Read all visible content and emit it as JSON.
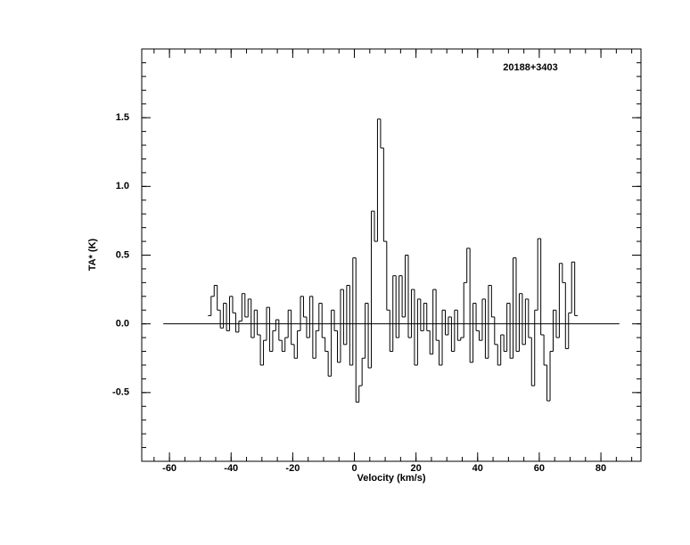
{
  "chart_data": {
    "type": "step",
    "annotation": "20188+3403",
    "x_label": "Velocity (km/s)",
    "y_label": "TA* (K)",
    "xlim": [
      -69,
      93
    ],
    "ylim": [
      -1,
      2
    ],
    "xticks": [
      -60,
      -40,
      -20,
      0,
      20,
      40,
      60,
      80
    ],
    "yticks": [
      -0.5,
      {
        "value": 0,
        "label": "0.0"
      },
      0.5,
      {
        "value": 1,
        "label": "1.0"
      },
      1.5
    ],
    "baseline": {
      "x": [
        -62,
        86
      ],
      "y": 0
    },
    "color": "#000000",
    "x": [
      -47,
      -46,
      -45,
      -44,
      -43,
      -42,
      -41,
      -40,
      -39,
      -38,
      -37,
      -36,
      -35,
      -34,
      -33,
      -32,
      -31,
      -30,
      -29,
      -28,
      -27,
      -26,
      -25,
      -24,
      -23,
      -22,
      -21,
      -20,
      -19,
      -18,
      -17,
      -16,
      -15,
      -14,
      -13,
      -12,
      -11,
      -10,
      -9,
      -8,
      -7,
      -6,
      -5,
      -4,
      -3,
      -2,
      -1,
      0,
      1,
      2,
      3,
      4,
      5,
      6,
      7,
      8,
      9,
      10,
      11,
      12,
      13,
      14,
      15,
      16,
      17,
      18,
      19,
      20,
      21,
      22,
      23,
      24,
      25,
      26,
      27,
      28,
      29,
      30,
      31,
      32,
      33,
      34,
      35,
      36,
      37,
      38,
      39,
      40,
      41,
      42,
      43,
      44,
      45,
      46,
      47,
      48,
      49,
      50,
      51,
      52,
      53,
      54,
      55,
      56,
      57,
      58,
      59,
      60,
      61,
      62,
      63,
      64,
      65,
      66,
      67,
      68,
      69,
      70,
      71,
      72
    ],
    "values": [
      0.06,
      0.2,
      0.28,
      0.1,
      -0.03,
      0.15,
      -0.05,
      0.2,
      0.08,
      -0.06,
      0.02,
      0.22,
      0.05,
      0.18,
      -0.1,
      0.1,
      -0.08,
      -0.3,
      -0.12,
      0.12,
      -0.2,
      -0.05,
      0.03,
      -0.12,
      -0.2,
      -0.1,
      0.1,
      -0.15,
      -0.25,
      -0.05,
      0.2,
      0.05,
      -0.1,
      0.2,
      -0.25,
      -0.05,
      0.15,
      -0.1,
      -0.2,
      -0.38,
      0.1,
      -0.05,
      -0.28,
      0.25,
      -0.15,
      0.28,
      -0.3,
      0.48,
      -0.57,
      -0.45,
      -0.25,
      0.15,
      -0.32,
      0.82,
      0.6,
      1.49,
      1.28,
      0.6,
      0.1,
      -0.2,
      0.35,
      -0.1,
      0.35,
      0.05,
      0.5,
      -0.1,
      0.25,
      -0.3,
      0.18,
      -0.05,
      0.15,
      -0.05,
      -0.22,
      0.25,
      -0.12,
      -0.3,
      0.1,
      -0.08,
      0.05,
      -0.2,
      0.1,
      -0.12,
      -0.1,
      0.3,
      0.55,
      -0.28,
      0.15,
      -0.05,
      -0.12,
      0.18,
      -0.25,
      0.28,
      0.05,
      -0.15,
      -0.3,
      -0.08,
      -0.2,
      0.15,
      -0.25,
      0.48,
      -0.2,
      0.22,
      -0.15,
      0.18,
      -0.1,
      -0.45,
      0.1,
      0.62,
      -0.08,
      -0.3,
      -0.56,
      -0.2,
      0.1,
      -0.1,
      0.44,
      0.3,
      -0.18,
      0.08,
      0.45,
      0.06
    ]
  }
}
